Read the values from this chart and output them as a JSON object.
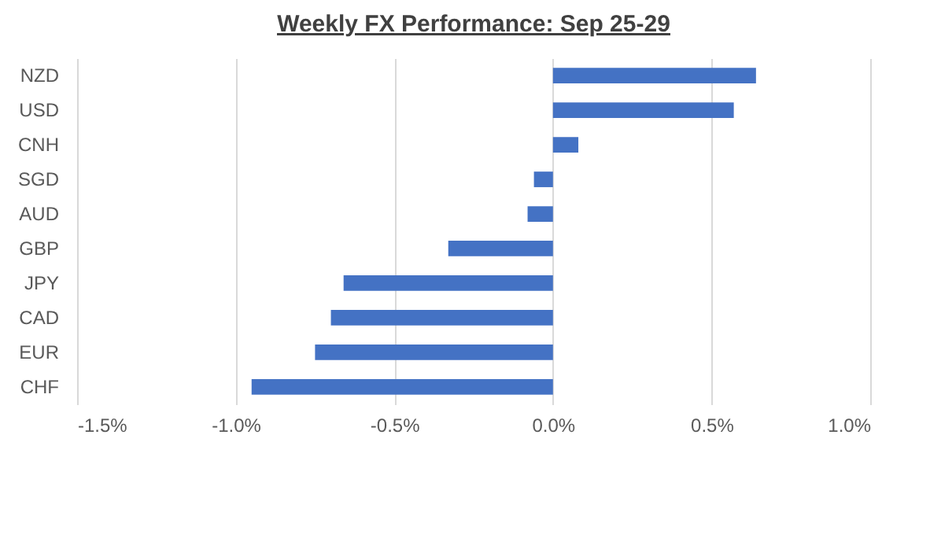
{
  "chart_data": {
    "type": "bar",
    "orientation": "horizontal",
    "title": "Weekly FX Performance: Sep 25-29",
    "categories": [
      "NZD",
      "USD",
      "CNH",
      "SGD",
      "AUD",
      "GBP",
      "JPY",
      "CAD",
      "EUR",
      "CHF"
    ],
    "values": [
      0.64,
      0.57,
      0.08,
      -0.06,
      -0.08,
      -0.33,
      -0.66,
      -0.7,
      -0.75,
      -0.95
    ],
    "color": "#4472c4",
    "xlim": [
      -1.5,
      1.0
    ],
    "xticks": [
      {
        "value": -1.5,
        "label": "-1.5%"
      },
      {
        "value": -1.0,
        "label": "-1.0%"
      },
      {
        "value": -0.5,
        "label": "-0.5%"
      },
      {
        "value": 0,
        "label": "0.0%"
      },
      {
        "value": 0.5,
        "label": "0.5%"
      },
      {
        "value": 1.0,
        "label": "1.0%"
      }
    ],
    "grid": "x"
  }
}
